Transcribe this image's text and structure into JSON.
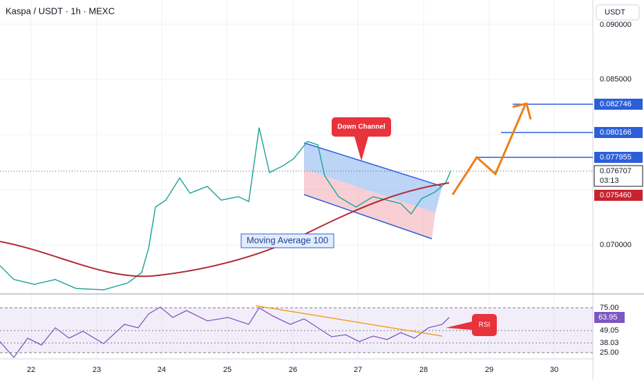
{
  "header": {
    "title": "Kaspa / USDT · 1h · MEXC",
    "currency": "USDT"
  },
  "price_axis": {
    "labels": [
      "0.090000",
      "0.085000",
      "0.070000"
    ]
  },
  "price_levels": [
    "0.082746",
    "0.080166",
    "0.077955"
  ],
  "current_price": {
    "label": "0.076707",
    "countdown": "03:13"
  },
  "low_level": "0.075460",
  "annotations": {
    "down_channel": "Down Channel",
    "moving_average": "Moving Average 100",
    "rsi": "RSI"
  },
  "rsi_axis": {
    "labels": [
      "75.00",
      "49.05",
      "38.03",
      "25.00"
    ],
    "current": "63.95"
  },
  "time_axis": {
    "labels": [
      "22",
      "23",
      "24",
      "25",
      "26",
      "27",
      "28",
      "29",
      "30"
    ]
  }
}
